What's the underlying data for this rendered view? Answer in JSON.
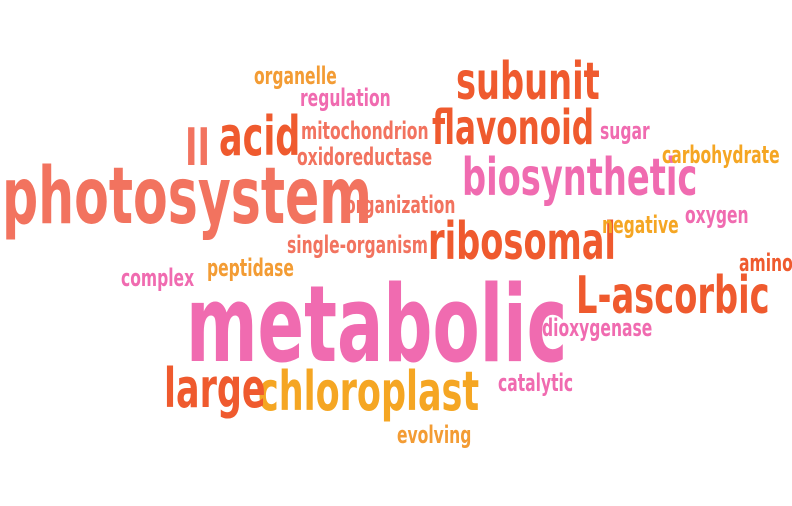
{
  "colors": {
    "salmon": "#F2735F",
    "orange_red": "#EF5A2E",
    "pink": "#F06BB0",
    "orange": "#F39C34",
    "amber": "#F5A623"
  },
  "words": [
    {
      "id": "photosystem",
      "text": "photosystem",
      "color": "salmon"
    },
    {
      "id": "metabolic",
      "text": "metabolic",
      "color": "pink"
    },
    {
      "id": "subunit",
      "text": "subunit",
      "color": "orange_red"
    },
    {
      "id": "flavonoid",
      "text": "flavonoid",
      "color": "orange_red"
    },
    {
      "id": "biosynthetic",
      "text": "biosynthetic",
      "color": "pink"
    },
    {
      "id": "ribosomal",
      "text": "ribosomal",
      "color": "orange_red"
    },
    {
      "id": "l-ascorbic",
      "text": "L-ascorbic",
      "color": "orange_red"
    },
    {
      "id": "chloroplast",
      "text": "chloroplast",
      "color": "amber"
    },
    {
      "id": "large",
      "text": "large",
      "color": "orange_red"
    },
    {
      "id": "acid",
      "text": "acid",
      "color": "orange_red"
    },
    {
      "id": "ii",
      "text": "II",
      "color": "salmon"
    },
    {
      "id": "organelle",
      "text": "organelle",
      "color": "orange"
    },
    {
      "id": "regulation",
      "text": "regulation",
      "color": "pink"
    },
    {
      "id": "mitochondrion",
      "text": "mitochondrion",
      "color": "salmon"
    },
    {
      "id": "oxidoreductase",
      "text": "oxidoreductase",
      "color": "salmon"
    },
    {
      "id": "sugar",
      "text": "sugar",
      "color": "pink"
    },
    {
      "id": "carbohydrate",
      "text": "carbohydrate",
      "color": "amber"
    },
    {
      "id": "organization",
      "text": "organization",
      "color": "salmon"
    },
    {
      "id": "negative",
      "text": "negative",
      "color": "amber"
    },
    {
      "id": "oxygen",
      "text": "oxygen",
      "color": "pink"
    },
    {
      "id": "single-organism",
      "text": "single-organism",
      "color": "salmon"
    },
    {
      "id": "amino",
      "text": "amino",
      "color": "orange_red"
    },
    {
      "id": "complex",
      "text": "complex",
      "color": "pink"
    },
    {
      "id": "peptidase",
      "text": "peptidase",
      "color": "orange"
    },
    {
      "id": "dioxygenase",
      "text": "dioxygenase",
      "color": "pink"
    },
    {
      "id": "catalytic",
      "text": "catalytic",
      "color": "pink"
    },
    {
      "id": "evolving",
      "text": "evolving",
      "color": "orange"
    }
  ]
}
